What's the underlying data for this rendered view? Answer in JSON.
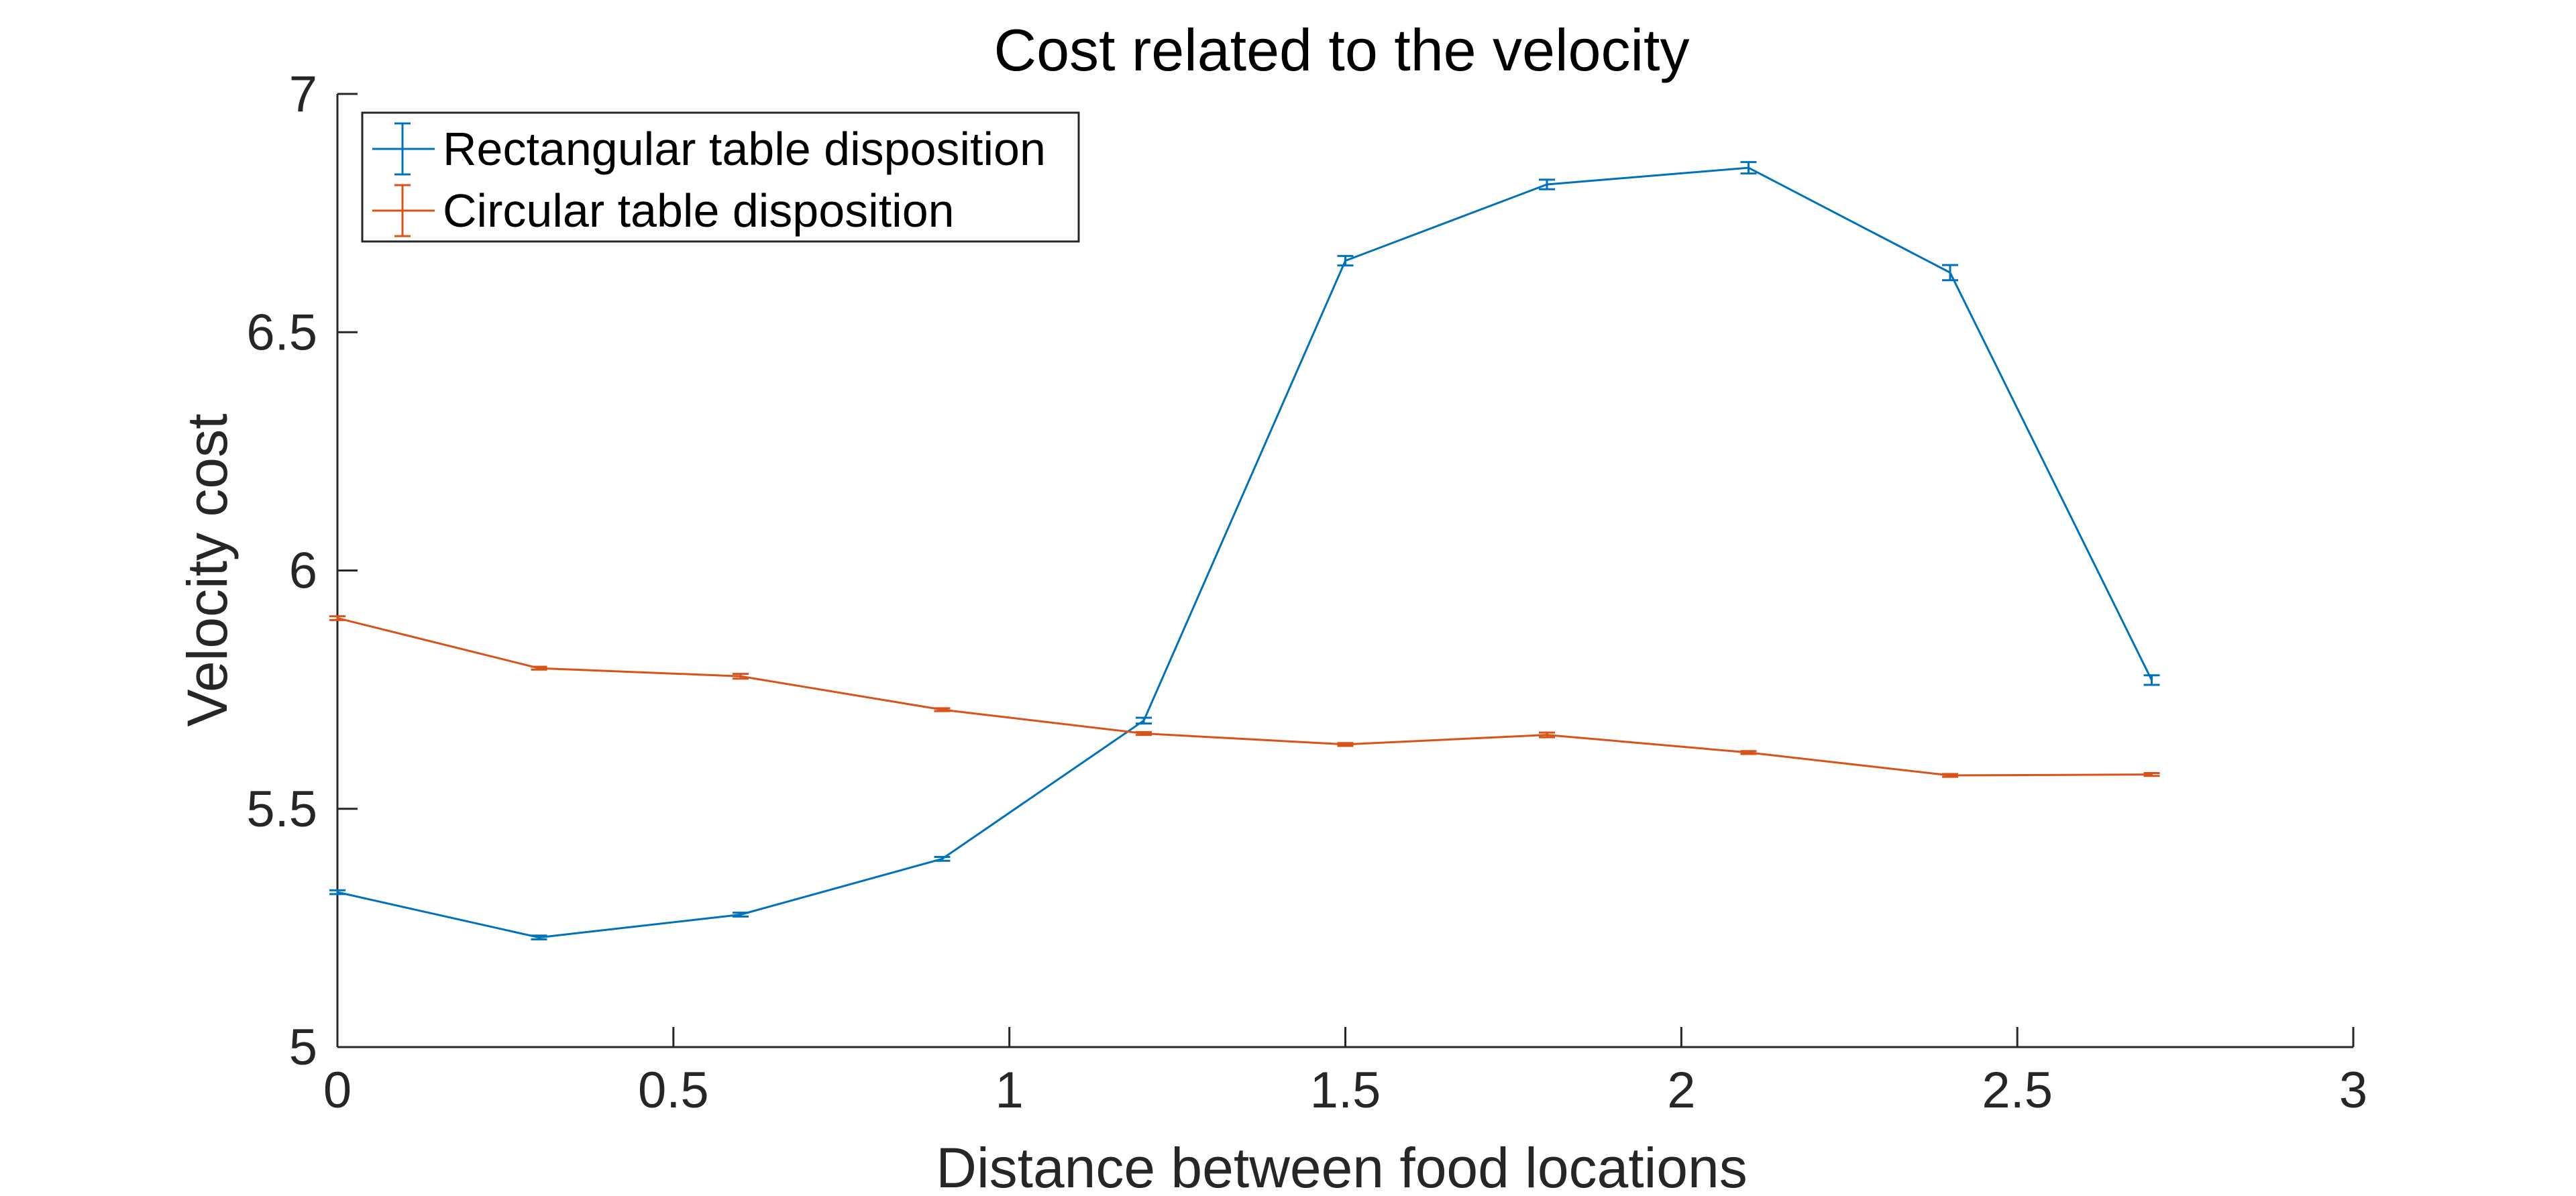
{
  "chart_data": {
    "type": "line",
    "title": "Cost related to the velocity",
    "xlabel": "Distance between food locations",
    "ylabel": "Velocity cost",
    "xlim": [
      0,
      3
    ],
    "ylim": [
      5,
      7
    ],
    "xticks": [
      0,
      0.5,
      1,
      1.5,
      2,
      2.5,
      3
    ],
    "xtick_labels": [
      "0",
      "0.5",
      "1",
      "1.5",
      "2",
      "2.5",
      "3"
    ],
    "yticks": [
      5,
      5.5,
      6,
      6.5,
      7
    ],
    "ytick_labels": [
      "5",
      "5.5",
      "6",
      "6.5",
      "7"
    ],
    "grid": false,
    "legend_position": "top-left",
    "x": [
      0,
      0.3,
      0.6,
      0.9,
      1.2,
      1.5,
      1.8,
      2.1,
      2.4,
      2.7
    ],
    "series": [
      {
        "name": "Rectangular table disposition",
        "color": "#0072BD",
        "values": [
          5.325,
          5.23,
          5.278,
          5.395,
          5.685,
          6.65,
          6.81,
          6.845,
          6.625,
          5.77
        ],
        "errors": [
          0.004,
          0.004,
          0.004,
          0.004,
          0.006,
          0.01,
          0.01,
          0.012,
          0.016,
          0.01
        ]
      },
      {
        "name": "Circular table disposition",
        "color": "#D95319",
        "values": [
          5.9,
          5.795,
          5.778,
          5.708,
          5.658,
          5.635,
          5.655,
          5.618,
          5.57,
          5.572
        ],
        "errors": [
          0.004,
          0.003,
          0.005,
          0.003,
          0.003,
          0.003,
          0.005,
          0.003,
          0.003,
          0.003
        ]
      }
    ]
  }
}
